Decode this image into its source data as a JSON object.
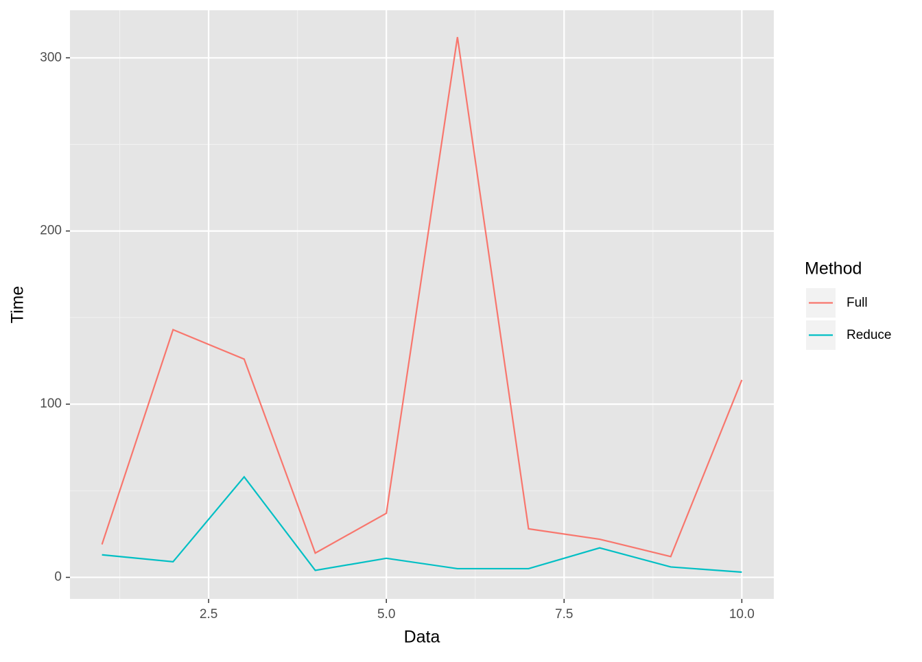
{
  "chart_data": {
    "type": "line",
    "x_label": "Data",
    "y_label": "Time",
    "x": [
      1,
      2,
      3,
      4,
      5,
      6,
      7,
      8,
      9,
      10
    ],
    "series": [
      {
        "name": "Full",
        "color": "#F8766D",
        "values": [
          19,
          143,
          126,
          14,
          37,
          312,
          28,
          22,
          12,
          114
        ]
      },
      {
        "name": "Reduce",
        "color": "#00BFC4",
        "values": [
          13,
          9,
          58,
          4,
          11,
          5,
          5,
          17,
          6,
          3
        ]
      }
    ],
    "legend_title": "Method",
    "xlim": [
      0.55,
      10.45
    ],
    "xticks": [
      {
        "value": 2.5,
        "label": "2.5"
      },
      {
        "value": 5,
        "label": "5.0"
      },
      {
        "value": 7.5,
        "label": "7.5"
      },
      {
        "value": 10,
        "label": "10.0"
      }
    ],
    "ylim": [
      -12.45,
      327.45
    ],
    "yticks": [
      0,
      100,
      200,
      300
    ],
    "grid": true,
    "legend_position": "right"
  }
}
